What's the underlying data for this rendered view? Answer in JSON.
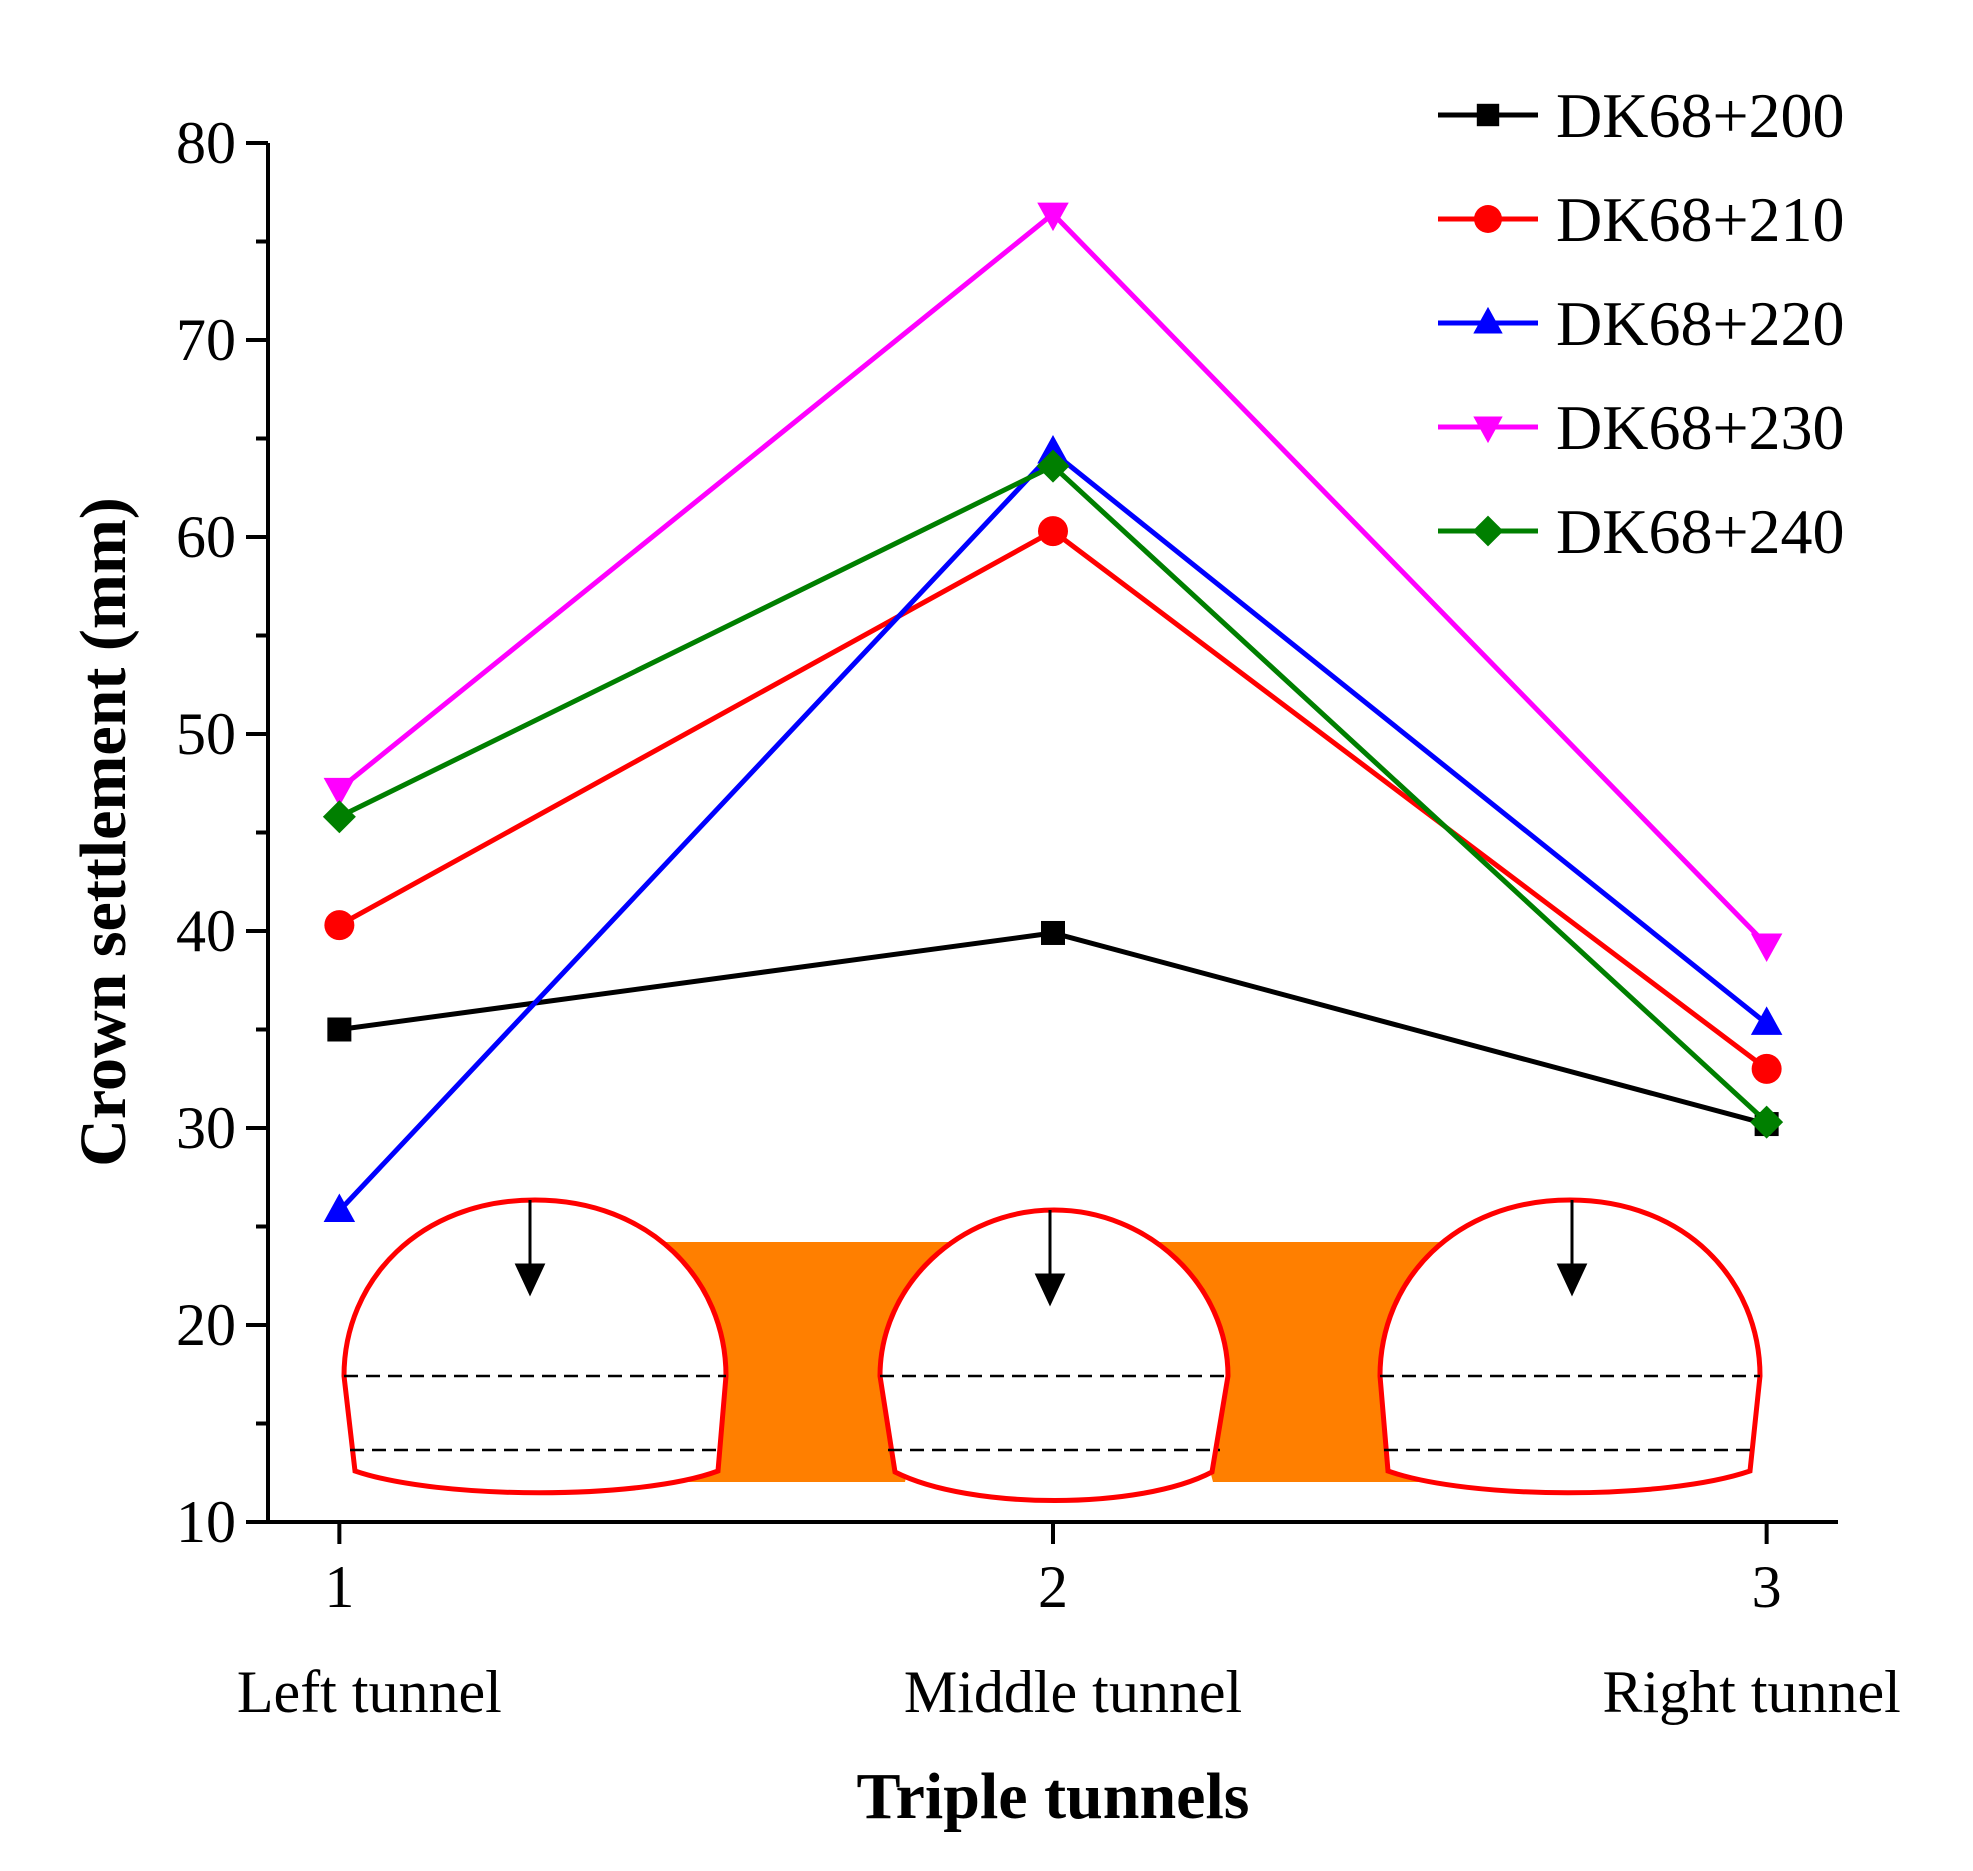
{
  "chart_data": {
    "type": "line",
    "title": "",
    "xlabel": "Triple tunnels",
    "ylabel": "Crown settlement (mm)",
    "x": [
      1,
      2,
      3
    ],
    "x_tick_labels": [
      "1",
      "2",
      "3"
    ],
    "categories": [
      "Left tunnel",
      "Middle tunnel",
      "Right tunnel"
    ],
    "xlim": [
      0.9,
      3.1
    ],
    "ylim": [
      10,
      80
    ],
    "y_ticks": [
      10,
      20,
      30,
      40,
      50,
      60,
      70,
      80
    ],
    "grid": false,
    "legend_position": "top-right",
    "series": [
      {
        "name": "DK68+200",
        "color": "#000000",
        "marker": "square",
        "values": [
          35.0,
          39.9,
          30.2
        ]
      },
      {
        "name": "DK68+210",
        "color": "#ff0000",
        "marker": "circle",
        "values": [
          40.3,
          60.3,
          33.0
        ]
      },
      {
        "name": "DK68+220",
        "color": "#0000ff",
        "marker": "triangle-up",
        "values": [
          25.8,
          64.3,
          35.3
        ]
      },
      {
        "name": "DK68+230",
        "color": "#ff00ff",
        "marker": "triangle-down",
        "values": [
          47.2,
          76.4,
          39.3
        ]
      },
      {
        "name": "DK68+240",
        "color": "#007f00",
        "marker": "diamond",
        "values": [
          45.8,
          63.6,
          30.3
        ]
      }
    ],
    "inset_diagram": {
      "description_icon": "triple-tunnel-cross-section",
      "tunnel_outline_color": "#ff0000",
      "pillar_fill_color": "#ff7f00"
    }
  }
}
